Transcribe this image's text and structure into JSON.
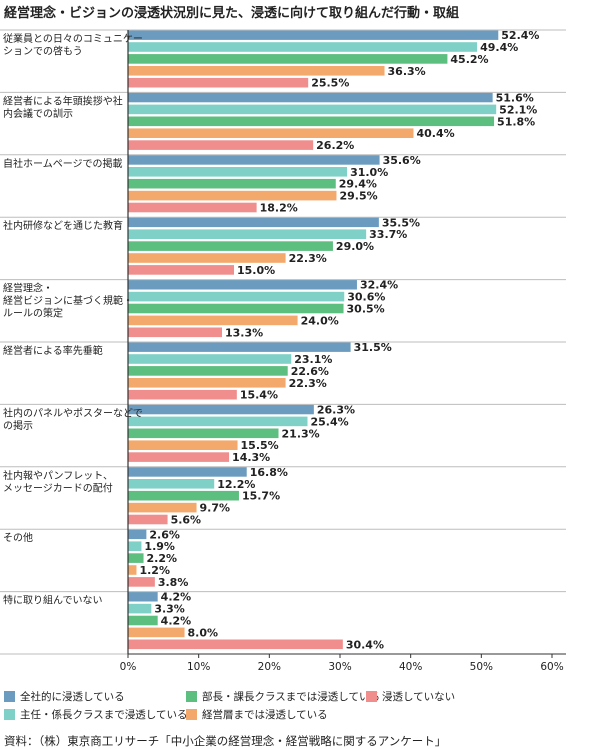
{
  "chart_data": {
    "type": "bar",
    "orientation": "horizontal",
    "title": "経営理念・ビジョンの浸透状況別に見た、浸透に向けて取り組んだ行動・取組",
    "categories": [
      [
        "従業員との日々のコミュニケー",
        "ションでの啓もう"
      ],
      [
        "経営者による年頭挨拶や社",
        "内会議での訓示"
      ],
      [
        "自社ホームページでの掲載"
      ],
      [
        "社内研修などを通じた教育"
      ],
      [
        "経営理念・",
        "経営ビジョンに基づく規範・",
        "ルールの策定"
      ],
      [
        "経営者による率先垂範"
      ],
      [
        "社内のパネルやポスターなどで",
        "の掲示"
      ],
      [
        "社内報やパンフレット、",
        "メッセージカードの配付"
      ],
      [
        "その他"
      ],
      [
        "特に取り組んでいない"
      ]
    ],
    "series": [
      {
        "name": "全社的に浸透している",
        "color": "#6b9cbf",
        "values": [
          52.4,
          51.6,
          35.6,
          35.5,
          32.4,
          31.5,
          26.3,
          16.8,
          2.6,
          4.2
        ]
      },
      {
        "name": "主任・係長クラスまで浸透している",
        "color": "#7fd1c7",
        "values": [
          49.4,
          52.1,
          31.0,
          33.7,
          30.6,
          23.1,
          25.4,
          12.2,
          1.9,
          3.3
        ]
      },
      {
        "name": "部長・課長クラスまでは浸透している",
        "color": "#5cbe7f",
        "values": [
          45.2,
          51.8,
          29.4,
          29.0,
          30.5,
          22.6,
          21.3,
          15.7,
          2.2,
          4.2
        ]
      },
      {
        "name": "経営層までは浸透している",
        "color": "#f3a96b",
        "values": [
          36.3,
          40.4,
          29.5,
          22.3,
          24.0,
          22.3,
          15.5,
          9.7,
          1.2,
          8.0
        ]
      },
      {
        "name": "浸透していない",
        "color": "#f08d8d",
        "values": [
          25.5,
          26.2,
          18.2,
          15.0,
          13.3,
          15.4,
          14.3,
          5.6,
          3.8,
          30.4
        ]
      }
    ],
    "xlim": [
      0,
      60
    ],
    "xticks": [
      "0%",
      "10%",
      "20%",
      "30%",
      "40%",
      "50%",
      "60%"
    ],
    "value_suffix": "%",
    "grid": false,
    "legend_position": "bottom"
  },
  "source": "資料：（株）東京商工リサーチ「中小企業の経営理念・経営戦略に関するアンケート」"
}
